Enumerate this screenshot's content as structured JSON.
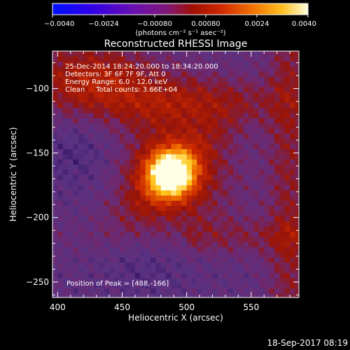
{
  "chart_data": {
    "type": "heatmap",
    "title": "Reconstructed RHESSI Image",
    "xlabel": "Heliocentric X (arcsec)",
    "ylabel": "Heliocentric Y (arcsec)",
    "xlim": [
      396,
      587
    ],
    "ylim": [
      -262,
      -71
    ],
    "x_ticks": [
      400,
      450,
      500,
      550
    ],
    "y_ticks": [
      -100,
      -150,
      -200,
      -250
    ],
    "x_tick_labels": [
      "400",
      "450",
      "500",
      "550"
    ],
    "y_tick_labels": [
      "−100",
      "−150",
      "−200",
      "−250"
    ],
    "colorbar": {
      "min": -0.004,
      "max": 0.004,
      "ticks": [
        -0.004,
        -0.0024,
        -0.0008,
        0.0008,
        0.0024,
        0.004
      ],
      "tick_labels": [
        "−0.0040",
        "−0.0024",
        "−0.00080",
        "0.00080",
        "0.0024",
        "0.0040"
      ],
      "units": "(photons cm⁻² s⁻¹ asec⁻²)"
    },
    "annotations": [
      "25-Dec-2014 18:24:20.000 to 18:34:20.000",
      "Detectors: 3F 6F 7F 9F, Att 0",
      "Energy Range: 6.0 - 12.0 keV",
      "Clean     Total counts: 3.66E+04"
    ],
    "peak_label": "Position of Peak = [488,-166]",
    "peak": [
      488,
      -166
    ],
    "footer": "18-Sep-2017 08:19",
    "colors": {
      "background": "#000000",
      "text": "#ffffff",
      "colormap": [
        "#0000ff",
        "#4b00d8",
        "#7a28a8",
        "#a01810",
        "#e05000",
        "#ff9a00",
        "#ffe040",
        "#ffffff"
      ]
    }
  }
}
